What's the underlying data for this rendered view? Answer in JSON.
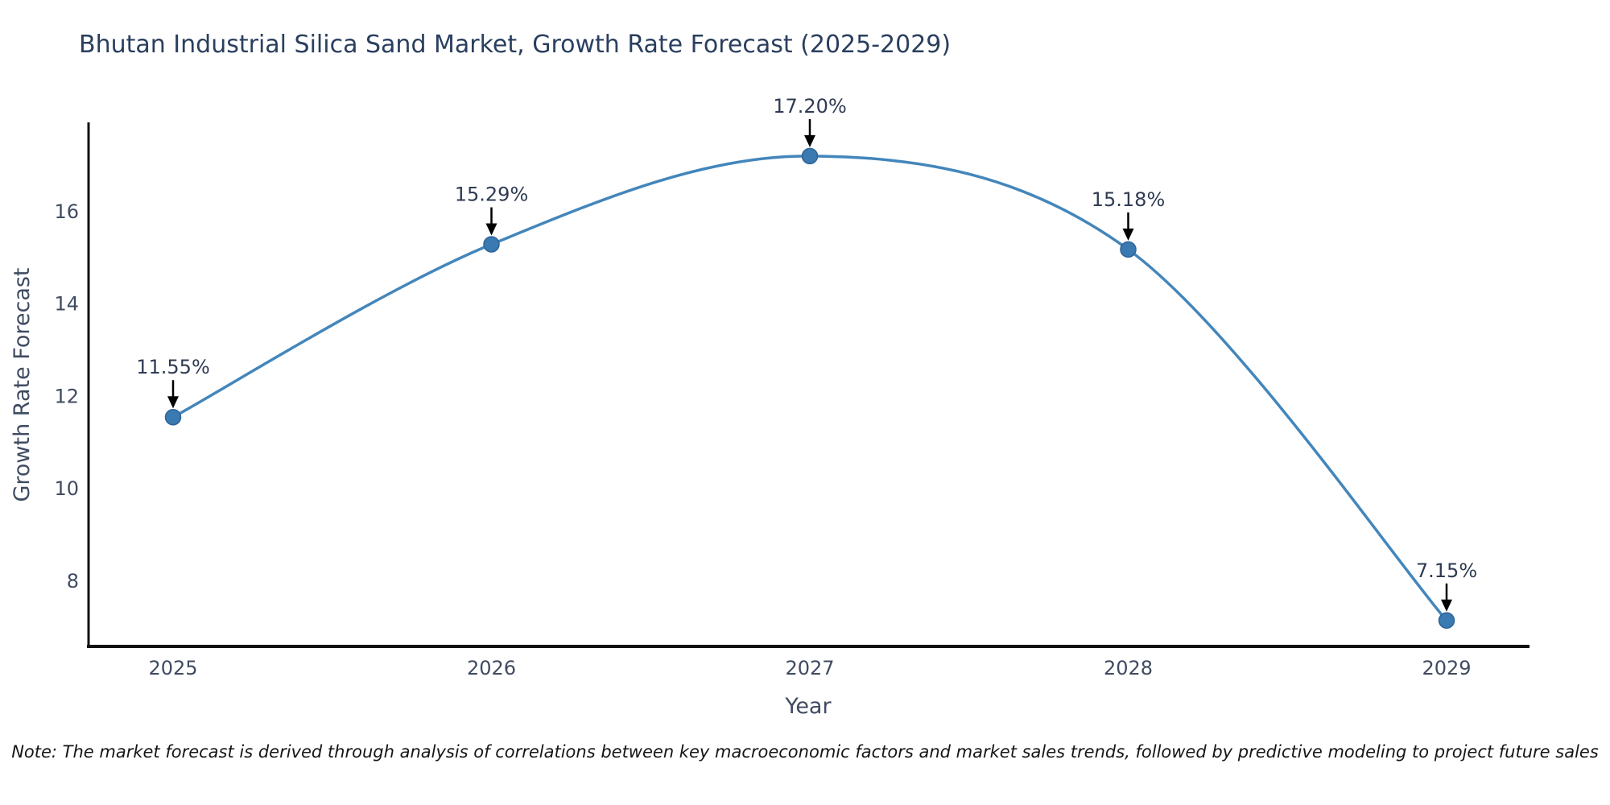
{
  "chart_data": {
    "type": "line",
    "title": "Bhutan Industrial Silica Sand Market, Growth Rate Forecast (2025-2029)",
    "xlabel": "Year",
    "ylabel": "Growth Rate Forecast",
    "x": [
      2025,
      2026,
      2027,
      2028,
      2029
    ],
    "series": [
      {
        "name": "Growth Rate Forecast",
        "values": [
          11.55,
          15.29,
          17.2,
          15.18,
          7.15
        ]
      }
    ],
    "point_labels": [
      "11.55%",
      "15.29%",
      "17.20%",
      "15.18%",
      "7.15%"
    ],
    "yticks": [
      8,
      10,
      12,
      14,
      16
    ],
    "ylim": [
      6.6,
      18.0
    ],
    "grid": false,
    "legend": "none",
    "line_shape": "spline",
    "annotation_style": "black-arrow-above-point",
    "colors": {
      "line": "#4386bb",
      "marker_fill": "#3a7ab0",
      "marker_edge": "#2d6398",
      "axis": "#111111",
      "annotation_arrow": "#000000",
      "title_text": "#2a3f5f",
      "tick_text": "#3f4b61"
    }
  },
  "note": "Note: The market forecast is derived through analysis of correlations between key macroeconomic factors and market sales trends, followed by predictive modeling to project future sales"
}
